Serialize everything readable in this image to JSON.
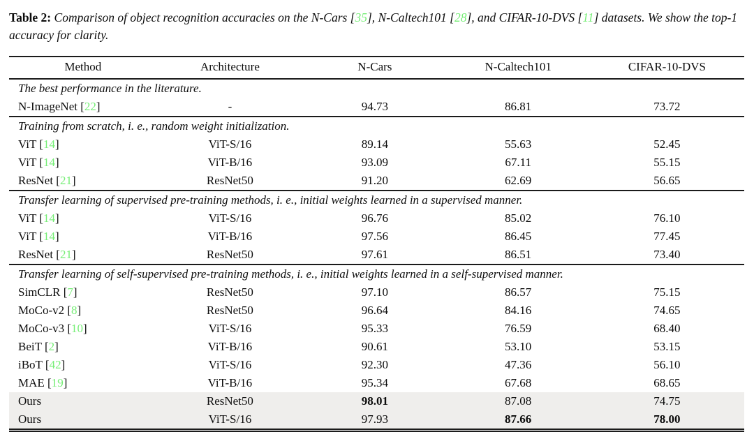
{
  "caption": {
    "label": "Table 2:",
    "segments": [
      {
        "text": "Comparison of object recognition accuracies on the N-Cars [",
        "style": "italic"
      },
      {
        "text": "35",
        "style": "cite"
      },
      {
        "text": "], N-Caltech101 [",
        "style": "italic"
      },
      {
        "text": "28",
        "style": "cite"
      },
      {
        "text": "], and CIFAR-10-DVS [",
        "style": "italic"
      },
      {
        "text": "11",
        "style": "cite"
      },
      {
        "text": "] datasets. We show the top-1 accuracy for clarity.",
        "style": "italic"
      }
    ]
  },
  "table": {
    "columns": [
      "Method",
      "Architecture",
      "N-Cars",
      "N-Caltech101",
      "CIFAR-10-DVS"
    ],
    "cite_brackets": [
      "[",
      "]"
    ],
    "colors": {
      "cite_green": "#76ee76",
      "highlight_row": "#efeeec",
      "rule_color": "#1b1b1b",
      "text_color": "#0c0c0c"
    },
    "sections": [
      {
        "heading": "The best performance in the literature.",
        "rows": [
          {
            "method": "N-ImageNet",
            "cite": "22",
            "arch": "-",
            "values": [
              "94.73",
              "86.81",
              "73.72"
            ],
            "bold": [
              false,
              false,
              false
            ],
            "highlight": false
          }
        ]
      },
      {
        "heading": "Training from scratch, i. e., random weight initialization.",
        "rows": [
          {
            "method": "ViT",
            "cite": "14",
            "arch": "ViT-S/16",
            "values": [
              "89.14",
              "55.63",
              "52.45"
            ],
            "bold": [
              false,
              false,
              false
            ],
            "highlight": false
          },
          {
            "method": "ViT",
            "cite": "14",
            "arch": "ViT-B/16",
            "values": [
              "93.09",
              "67.11",
              "55.15"
            ],
            "bold": [
              false,
              false,
              false
            ],
            "highlight": false
          },
          {
            "method": "ResNet",
            "cite": "21",
            "arch": "ResNet50",
            "values": [
              "91.20",
              "62.69",
              "56.65"
            ],
            "bold": [
              false,
              false,
              false
            ],
            "highlight": false
          }
        ]
      },
      {
        "heading": "Transfer learning of supervised pre-training methods, i. e., initial weights learned in a supervised manner.",
        "rows": [
          {
            "method": "ViT",
            "cite": "14",
            "arch": "ViT-S/16",
            "values": [
              "96.76",
              "85.02",
              "76.10"
            ],
            "bold": [
              false,
              false,
              false
            ],
            "highlight": false
          },
          {
            "method": "ViT",
            "cite": "14",
            "arch": "ViT-B/16",
            "values": [
              "97.56",
              "86.45",
              "77.45"
            ],
            "bold": [
              false,
              false,
              false
            ],
            "highlight": false
          },
          {
            "method": "ResNet",
            "cite": "21",
            "arch": "ResNet50",
            "values": [
              "97.61",
              "86.51",
              "73.40"
            ],
            "bold": [
              false,
              false,
              false
            ],
            "highlight": false
          }
        ]
      },
      {
        "heading": "Transfer learning of self-supervised pre-training methods, i. e., initial weights learned in a self-supervised manner.",
        "rows": [
          {
            "method": "SimCLR",
            "cite": "7",
            "arch": "ResNet50",
            "values": [
              "97.10",
              "86.57",
              "75.15"
            ],
            "bold": [
              false,
              false,
              false
            ],
            "highlight": false
          },
          {
            "method": "MoCo-v2",
            "cite": "8",
            "arch": "ResNet50",
            "values": [
              "96.64",
              "84.16",
              "74.65"
            ],
            "bold": [
              false,
              false,
              false
            ],
            "highlight": false
          },
          {
            "method": "MoCo-v3",
            "cite": "10",
            "arch": "ViT-S/16",
            "values": [
              "95.33",
              "76.59",
              "68.40"
            ],
            "bold": [
              false,
              false,
              false
            ],
            "highlight": false
          },
          {
            "method": "BeiT",
            "cite": "2",
            "arch": "ViT-B/16",
            "values": [
              "90.61",
              "53.10",
              "53.15"
            ],
            "bold": [
              false,
              false,
              false
            ],
            "highlight": false
          },
          {
            "method": "iBoT",
            "cite": "42",
            "arch": "ViT-S/16",
            "values": [
              "92.30",
              "47.36",
              "56.10"
            ],
            "bold": [
              false,
              false,
              false
            ],
            "highlight": false
          },
          {
            "method": "MAE",
            "cite": "19",
            "arch": "ViT-B/16",
            "values": [
              "95.34",
              "67.68",
              "68.65"
            ],
            "bold": [
              false,
              false,
              false
            ],
            "highlight": false
          },
          {
            "method": "Ours",
            "cite": null,
            "arch": "ResNet50",
            "values": [
              "98.01",
              "87.08",
              "74.75"
            ],
            "bold": [
              true,
              false,
              false
            ],
            "highlight": true
          },
          {
            "method": "Ours",
            "cite": null,
            "arch": "ViT-S/16",
            "values": [
              "97.93",
              "87.66",
              "78.00"
            ],
            "bold": [
              false,
              true,
              true
            ],
            "highlight": true
          }
        ]
      }
    ]
  }
}
